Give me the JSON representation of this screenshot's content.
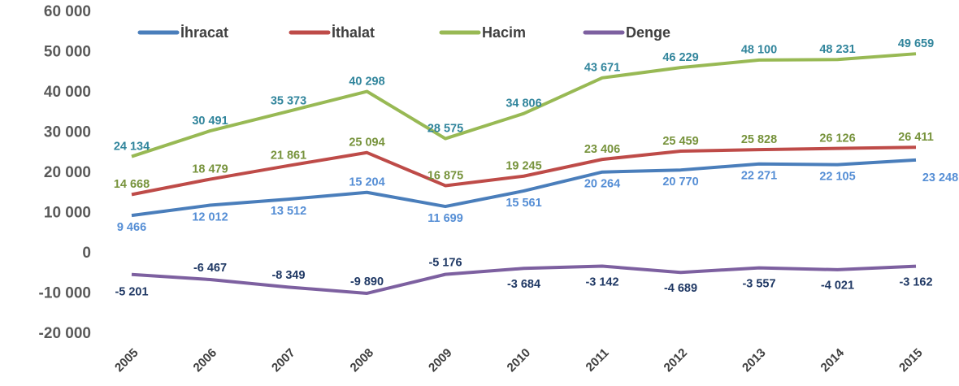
{
  "chart_data": {
    "type": "line",
    "categories": [
      "2005",
      "2006",
      "2007",
      "2008",
      "2009",
      "2010",
      "2011",
      "2012",
      "2013",
      "2014",
      "2015"
    ],
    "ylim": [
      -20000,
      60000
    ],
    "yticks": [
      {
        "value": -20000,
        "label": "-20 000"
      },
      {
        "value": -10000,
        "label": "-10 000"
      },
      0,
      {
        "value": 10000,
        "label": "10 000"
      },
      {
        "value": 20000,
        "label": "20 000"
      },
      {
        "value": 30000,
        "label": "30 000"
      },
      {
        "value": 40000,
        "label": "40 000"
      },
      {
        "value": 50000,
        "label": "50 000"
      },
      {
        "value": 60000,
        "label": "60 000"
      }
    ],
    "grid": false,
    "legend": "top",
    "series": [
      {
        "name": "İhracat",
        "color": "#4a7ebb",
        "label_color": "#558ed5",
        "values": [
          9466,
          12012,
          13512,
          15204,
          11699,
          15561,
          20264,
          20770,
          22271,
          22105,
          23248
        ],
        "value_labels": [
          "9 466",
          "12 012",
          "13 512",
          "15 204",
          "11 699",
          "15 561",
          "20 264",
          "20 770",
          "22 271",
          "22 105",
          "23 248"
        ]
      },
      {
        "name": "İthalat",
        "color": "#be4b48",
        "label_color": "#77933c",
        "values": [
          14668,
          18479,
          21861,
          25094,
          16875,
          19245,
          23406,
          25459,
          25828,
          26126,
          26411
        ],
        "value_labels": [
          "14 668",
          "18 479",
          "21 861",
          "25 094",
          "16 875",
          "19 245",
          "23 406",
          "25 459",
          "25 828",
          "26 126",
          "26 411"
        ]
      },
      {
        "name": "Hacim",
        "color": "#98b954",
        "label_color": "#31859c",
        "values": [
          24134,
          30491,
          35373,
          40298,
          28575,
          34806,
          43671,
          46229,
          48100,
          48231,
          49659
        ],
        "value_labels": [
          "24 134",
          "30 491",
          "35 373",
          "40 298",
          "28 575",
          "34 806",
          "43 671",
          "46 229",
          "48 100",
          "48 231",
          "49 659"
        ]
      },
      {
        "name": "Denge",
        "color": "#7d60a0",
        "label_color": "#1f3864",
        "values": [
          -5201,
          -6467,
          -8349,
          -9890,
          -5176,
          -3684,
          -3142,
          -4689,
          -3557,
          -4021,
          -3162
        ],
        "value_labels": [
          "-5 201",
          "-6 467",
          "-8 349",
          "-9 890",
          "-5 176",
          "-3 684",
          "-3 142",
          "-4 689",
          "-3 557",
          "-4 021",
          "-3 162"
        ]
      }
    ]
  }
}
